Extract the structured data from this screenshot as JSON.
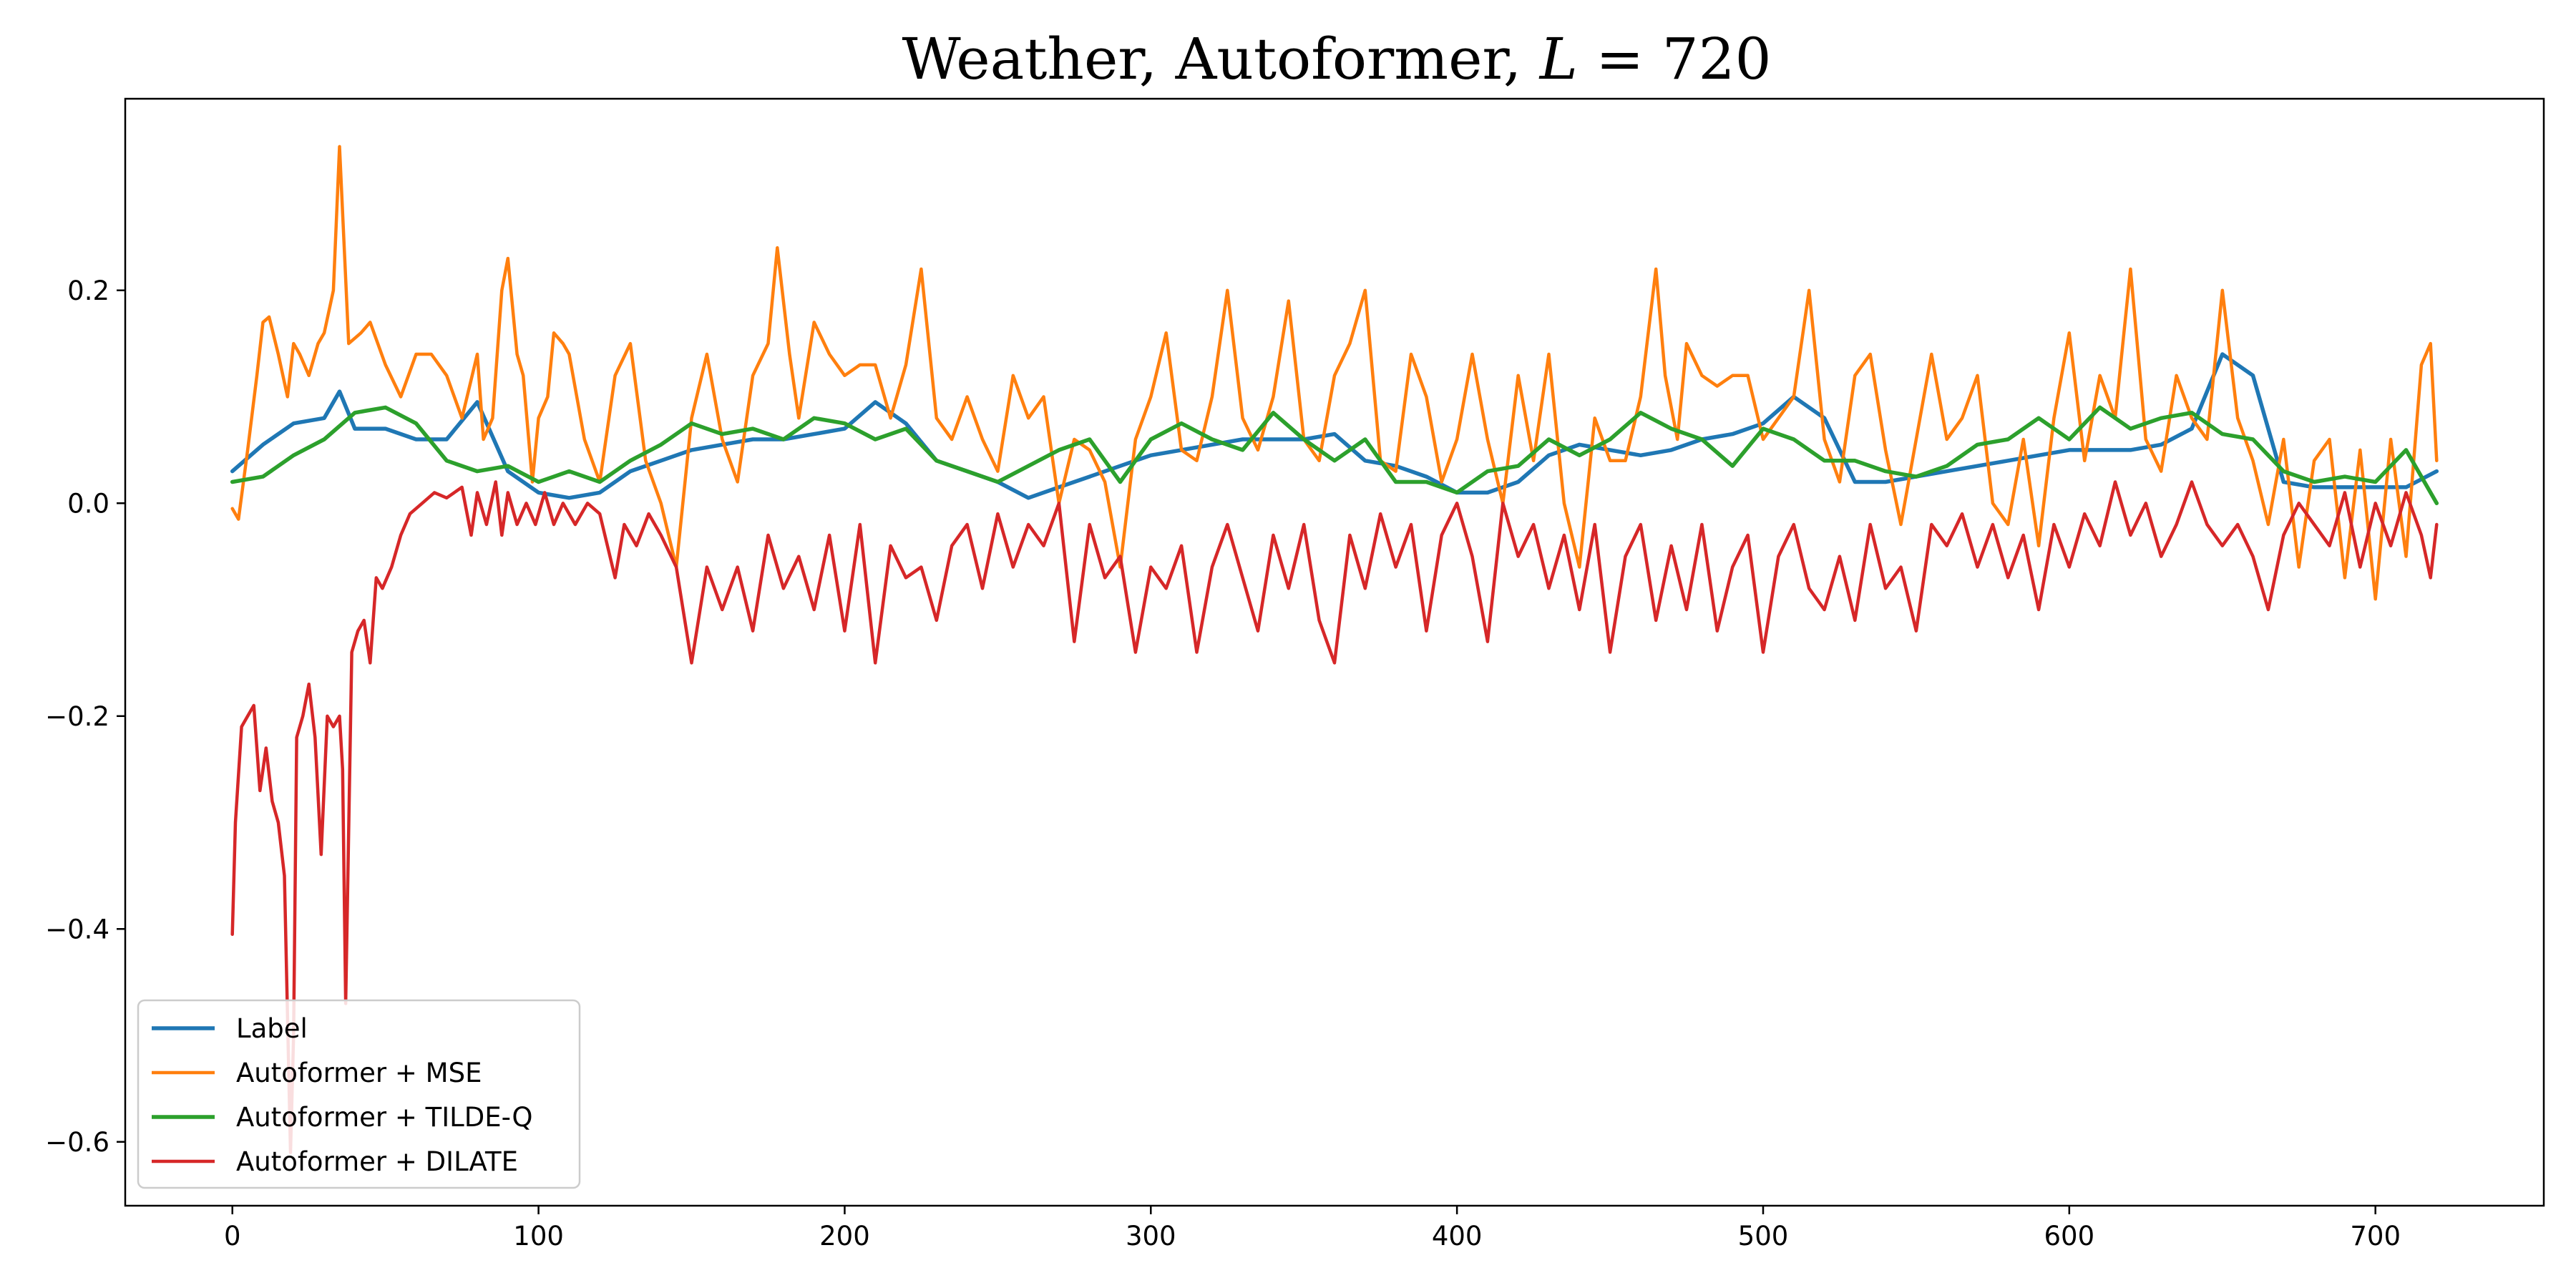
{
  "chart_data": {
    "type": "line",
    "title_parts": {
      "prefix": "Weather, Autoformer, ",
      "variable": "L",
      "suffix": " = 720"
    },
    "xlabel": "",
    "ylabel": "",
    "xlim": [
      -35,
      755
    ],
    "ylim": [
      -0.66,
      0.38
    ],
    "xticks": [
      0,
      100,
      200,
      300,
      400,
      500,
      600,
      700
    ],
    "xtick_labels": [
      "0",
      "100",
      "200",
      "300",
      "400",
      "500",
      "600",
      "700"
    ],
    "yticks": [
      -0.6,
      -0.4,
      -0.2,
      0.0,
      0.2
    ],
    "ytick_labels": [
      "−0.6",
      "−0.4",
      "−0.2",
      "0.0",
      "0.2"
    ],
    "grid": false,
    "legend_position": "lower-left",
    "series": [
      {
        "name": "Label",
        "color": "#1f77b4",
        "x": [
          0,
          10,
          20,
          30,
          35,
          40,
          50,
          60,
          70,
          80,
          90,
          100,
          110,
          120,
          130,
          140,
          150,
          160,
          170,
          180,
          190,
          200,
          210,
          220,
          230,
          240,
          250,
          260,
          270,
          280,
          290,
          300,
          310,
          320,
          330,
          340,
          350,
          360,
          370,
          380,
          390,
          400,
          410,
          420,
          430,
          440,
          450,
          460,
          470,
          480,
          490,
          500,
          510,
          520,
          530,
          540,
          550,
          560,
          570,
          580,
          590,
          600,
          610,
          620,
          630,
          640,
          650,
          660,
          670,
          680,
          690,
          700,
          710,
          720
        ],
        "y": [
          0.03,
          0.055,
          0.075,
          0.08,
          0.105,
          0.07,
          0.07,
          0.06,
          0.06,
          0.095,
          0.03,
          0.01,
          0.005,
          0.01,
          0.03,
          0.04,
          0.05,
          0.055,
          0.06,
          0.06,
          0.065,
          0.07,
          0.095,
          0.075,
          0.04,
          0.03,
          0.02,
          0.005,
          0.015,
          0.025,
          0.035,
          0.045,
          0.05,
          0.055,
          0.06,
          0.06,
          0.06,
          0.065,
          0.04,
          0.035,
          0.025,
          0.01,
          0.01,
          0.02,
          0.045,
          0.055,
          0.05,
          0.045,
          0.05,
          0.06,
          0.065,
          0.075,
          0.1,
          0.08,
          0.02,
          0.02,
          0.025,
          0.03,
          0.035,
          0.04,
          0.045,
          0.05,
          0.05,
          0.05,
          0.055,
          0.07,
          0.14,
          0.12,
          0.02,
          0.015,
          0.015,
          0.015,
          0.015,
          0.03
        ]
      },
      {
        "name": "Autoformer + MSE",
        "color": "#ff7f0e",
        "x": [
          0,
          2,
          5,
          8,
          10,
          12,
          15,
          18,
          20,
          22,
          25,
          28,
          30,
          33,
          35,
          38,
          42,
          45,
          50,
          55,
          60,
          65,
          70,
          75,
          80,
          82,
          85,
          88,
          90,
          93,
          95,
          98,
          100,
          103,
          105,
          108,
          110,
          115,
          120,
          125,
          130,
          135,
          140,
          145,
          150,
          155,
          160,
          165,
          170,
          175,
          178,
          182,
          185,
          190,
          195,
          200,
          205,
          210,
          215,
          220,
          225,
          230,
          235,
          240,
          245,
          250,
          255,
          260,
          265,
          270,
          275,
          280,
          285,
          290,
          295,
          300,
          305,
          310,
          315,
          320,
          325,
          330,
          335,
          340,
          345,
          350,
          355,
          360,
          365,
          370,
          375,
          380,
          385,
          390,
          395,
          400,
          405,
          410,
          415,
          420,
          425,
          430,
          435,
          440,
          445,
          450,
          455,
          460,
          465,
          468,
          472,
          475,
          480,
          485,
          490,
          495,
          500,
          505,
          510,
          515,
          520,
          525,
          530,
          535,
          540,
          545,
          550,
          555,
          560,
          565,
          570,
          575,
          580,
          585,
          590,
          595,
          600,
          605,
          610,
          615,
          620,
          625,
          630,
          635,
          640,
          645,
          650,
          655,
          660,
          665,
          670,
          675,
          680,
          685,
          690,
          695,
          700,
          705,
          710,
          715,
          718,
          720
        ],
        "y": [
          -0.005,
          -0.015,
          0.05,
          0.12,
          0.17,
          0.175,
          0.14,
          0.1,
          0.15,
          0.14,
          0.12,
          0.15,
          0.16,
          0.2,
          0.335,
          0.15,
          0.16,
          0.17,
          0.13,
          0.1,
          0.14,
          0.14,
          0.12,
          0.08,
          0.14,
          0.06,
          0.08,
          0.2,
          0.23,
          0.14,
          0.12,
          0.02,
          0.08,
          0.1,
          0.16,
          0.15,
          0.14,
          0.06,
          0.02,
          0.12,
          0.15,
          0.04,
          0.0,
          -0.06,
          0.08,
          0.14,
          0.06,
          0.02,
          0.12,
          0.15,
          0.24,
          0.14,
          0.08,
          0.17,
          0.14,
          0.12,
          0.13,
          0.13,
          0.08,
          0.13,
          0.22,
          0.08,
          0.06,
          0.1,
          0.06,
          0.03,
          0.12,
          0.08,
          0.1,
          0.0,
          0.06,
          0.05,
          0.02,
          -0.06,
          0.06,
          0.1,
          0.16,
          0.05,
          0.04,
          0.1,
          0.2,
          0.08,
          0.05,
          0.1,
          0.19,
          0.06,
          0.04,
          0.12,
          0.15,
          0.2,
          0.04,
          0.03,
          0.14,
          0.1,
          0.02,
          0.06,
          0.14,
          0.06,
          0.0,
          0.12,
          0.04,
          0.14,
          0.0,
          -0.06,
          0.08,
          0.04,
          0.04,
          0.1,
          0.22,
          0.12,
          0.06,
          0.15,
          0.12,
          0.11,
          0.12,
          0.12,
          0.06,
          0.08,
          0.1,
          0.2,
          0.06,
          0.02,
          0.12,
          0.14,
          0.05,
          -0.02,
          0.06,
          0.14,
          0.06,
          0.08,
          0.12,
          0.0,
          -0.02,
          0.06,
          -0.04,
          0.08,
          0.16,
          0.04,
          0.12,
          0.08,
          0.22,
          0.06,
          0.03,
          0.12,
          0.08,
          0.06,
          0.2,
          0.08,
          0.04,
          -0.02,
          0.06,
          -0.06,
          0.04,
          0.06,
          -0.07,
          0.05,
          -0.09,
          0.06,
          -0.05,
          0.13,
          0.15,
          0.04
        ]
      },
      {
        "name": "Autoformer + TILDE-Q",
        "color": "#2ca02c",
        "x": [
          0,
          10,
          20,
          30,
          40,
          50,
          60,
          70,
          80,
          90,
          100,
          110,
          120,
          130,
          140,
          150,
          160,
          170,
          180,
          190,
          200,
          210,
          220,
          230,
          240,
          250,
          260,
          270,
          280,
          290,
          300,
          310,
          320,
          330,
          340,
          350,
          360,
          370,
          380,
          390,
          400,
          410,
          420,
          430,
          440,
          450,
          460,
          470,
          480,
          490,
          500,
          510,
          520,
          530,
          540,
          550,
          560,
          570,
          580,
          590,
          600,
          610,
          620,
          630,
          640,
          650,
          660,
          670,
          680,
          690,
          700,
          710,
          720
        ],
        "y": [
          0.02,
          0.025,
          0.045,
          0.06,
          0.085,
          0.09,
          0.075,
          0.04,
          0.03,
          0.035,
          0.02,
          0.03,
          0.02,
          0.04,
          0.055,
          0.075,
          0.065,
          0.07,
          0.06,
          0.08,
          0.075,
          0.06,
          0.07,
          0.04,
          0.03,
          0.02,
          0.035,
          0.05,
          0.06,
          0.02,
          0.06,
          0.075,
          0.06,
          0.05,
          0.085,
          0.06,
          0.04,
          0.06,
          0.02,
          0.02,
          0.01,
          0.03,
          0.035,
          0.06,
          0.045,
          0.06,
          0.085,
          0.07,
          0.06,
          0.035,
          0.07,
          0.06,
          0.04,
          0.04,
          0.03,
          0.025,
          0.035,
          0.055,
          0.06,
          0.08,
          0.06,
          0.09,
          0.07,
          0.08,
          0.085,
          0.065,
          0.06,
          0.03,
          0.02,
          0.025,
          0.02,
          0.05,
          0.0
        ]
      },
      {
        "name": "Autoformer + DILATE",
        "color": "#d62728",
        "x": [
          0,
          1,
          3,
          5,
          7,
          9,
          11,
          13,
          15,
          17,
          19,
          20,
          21,
          23,
          25,
          27,
          29,
          31,
          33,
          35,
          36,
          37,
          39,
          41,
          43,
          45,
          47,
          49,
          52,
          55,
          58,
          62,
          66,
          70,
          75,
          78,
          80,
          83,
          86,
          88,
          90,
          93,
          96,
          99,
          102,
          105,
          108,
          112,
          116,
          120,
          125,
          128,
          132,
          136,
          140,
          145,
          150,
          155,
          160,
          165,
          170,
          175,
          180,
          185,
          190,
          195,
          200,
          205,
          210,
          215,
          220,
          225,
          230,
          235,
          240,
          245,
          250,
          255,
          260,
          265,
          270,
          275,
          280,
          285,
          290,
          295,
          300,
          305,
          310,
          315,
          320,
          325,
          330,
          335,
          340,
          345,
          350,
          355,
          360,
          365,
          370,
          375,
          380,
          385,
          390,
          395,
          400,
          405,
          410,
          415,
          420,
          425,
          430,
          435,
          440,
          445,
          450,
          455,
          460,
          465,
          470,
          475,
          480,
          485,
          490,
          495,
          500,
          505,
          510,
          515,
          520,
          525,
          530,
          535,
          540,
          545,
          550,
          555,
          560,
          565,
          570,
          575,
          580,
          585,
          590,
          595,
          600,
          605,
          610,
          615,
          620,
          625,
          630,
          635,
          640,
          645,
          650,
          655,
          660,
          665,
          670,
          675,
          680,
          685,
          690,
          695,
          700,
          705,
          710,
          715,
          718,
          720
        ],
        "y": [
          -0.405,
          -0.3,
          -0.21,
          -0.2,
          -0.19,
          -0.27,
          -0.23,
          -0.28,
          -0.3,
          -0.35,
          -0.61,
          -0.5,
          -0.22,
          -0.2,
          -0.17,
          -0.22,
          -0.33,
          -0.2,
          -0.21,
          -0.2,
          -0.25,
          -0.47,
          -0.14,
          -0.12,
          -0.11,
          -0.15,
          -0.07,
          -0.08,
          -0.06,
          -0.03,
          -0.01,
          0.0,
          0.01,
          0.005,
          0.015,
          -0.03,
          0.01,
          -0.02,
          0.02,
          -0.03,
          0.01,
          -0.02,
          0.0,
          -0.02,
          0.01,
          -0.02,
          0.0,
          -0.02,
          0.0,
          -0.01,
          -0.07,
          -0.02,
          -0.04,
          -0.01,
          -0.03,
          -0.06,
          -0.15,
          -0.06,
          -0.1,
          -0.06,
          -0.12,
          -0.03,
          -0.08,
          -0.05,
          -0.1,
          -0.03,
          -0.12,
          -0.02,
          -0.15,
          -0.04,
          -0.07,
          -0.06,
          -0.11,
          -0.04,
          -0.02,
          -0.08,
          -0.01,
          -0.06,
          -0.02,
          -0.04,
          0.0,
          -0.13,
          -0.02,
          -0.07,
          -0.05,
          -0.14,
          -0.06,
          -0.08,
          -0.04,
          -0.14,
          -0.06,
          -0.02,
          -0.07,
          -0.12,
          -0.03,
          -0.08,
          -0.02,
          -0.11,
          -0.15,
          -0.03,
          -0.08,
          -0.01,
          -0.06,
          -0.02,
          -0.12,
          -0.03,
          0.0,
          -0.05,
          -0.13,
          0.0,
          -0.05,
          -0.02,
          -0.08,
          -0.03,
          -0.1,
          -0.02,
          -0.14,
          -0.05,
          -0.02,
          -0.11,
          -0.04,
          -0.1,
          -0.02,
          -0.12,
          -0.06,
          -0.03,
          -0.14,
          -0.05,
          -0.02,
          -0.08,
          -0.1,
          -0.05,
          -0.11,
          -0.02,
          -0.08,
          -0.06,
          -0.12,
          -0.02,
          -0.04,
          -0.01,
          -0.06,
          -0.02,
          -0.07,
          -0.03,
          -0.1,
          -0.02,
          -0.06,
          -0.01,
          -0.04,
          0.02,
          -0.03,
          0.0,
          -0.05,
          -0.02,
          0.02,
          -0.02,
          -0.04,
          -0.02,
          -0.05,
          -0.1,
          -0.03,
          0.0,
          -0.02,
          -0.04,
          0.01,
          -0.06,
          0.0,
          -0.04,
          0.01,
          -0.03,
          -0.07,
          -0.02
        ]
      }
    ]
  }
}
